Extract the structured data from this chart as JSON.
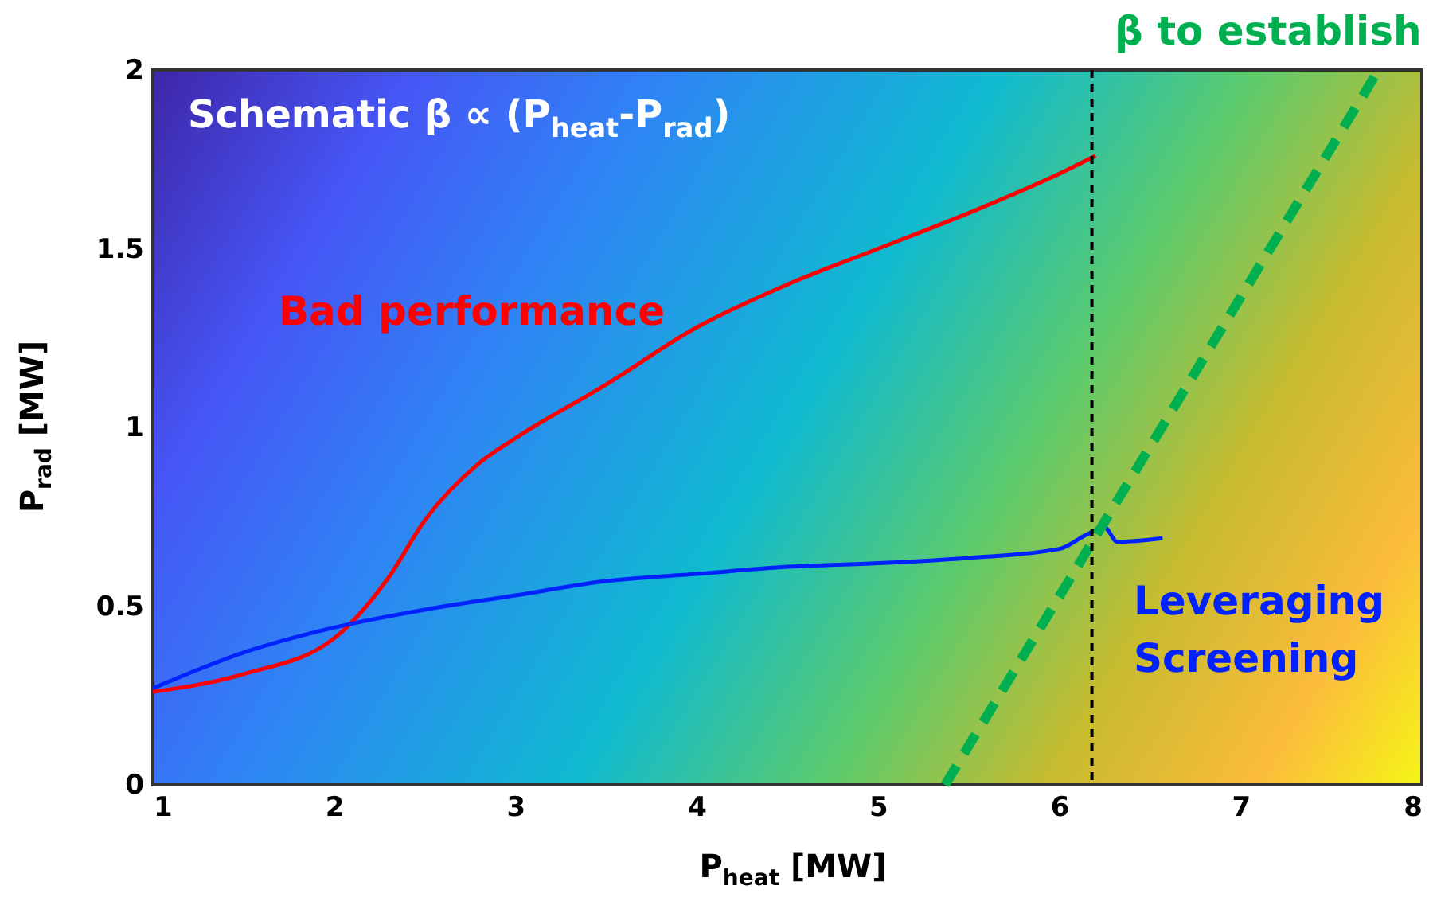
{
  "chart_data": {
    "type": "line",
    "title": "Schematic β ∝ (P$_{heat}$-P$_{rad}$)",
    "xlabel": "P$_{heat}$ [MW]",
    "ylabel": "P$_{rad}$ [MW]",
    "series": [
      {
        "name": "Bad performance",
        "color": "#ff0000",
        "x": [
          1,
          1.5,
          2,
          2.3,
          2.5,
          2.8,
          3,
          3.5,
          4,
          4.5,
          5,
          5.5,
          6,
          6.2
        ],
        "values": [
          0.26,
          0.31,
          0.41,
          0.58,
          0.74,
          0.9,
          0.97,
          1.12,
          1.28,
          1.4,
          1.5,
          1.6,
          1.71,
          1.76
        ]
      },
      {
        "name": "Leveraging Screening",
        "color": "#0022ff",
        "x": [
          1,
          1.5,
          2,
          2.5,
          3,
          3.5,
          4,
          4.5,
          5,
          5.5,
          6,
          6.15,
          6.25,
          6.32,
          6.57
        ],
        "values": [
          0.27,
          0.37,
          0.44,
          0.49,
          0.53,
          0.57,
          0.59,
          0.61,
          0.62,
          0.635,
          0.66,
          0.7,
          0.72,
          0.68,
          0.69
        ]
      },
      {
        "name": "β to establish",
        "color": "#00b050",
        "line_style": "dashed",
        "x": [
          5.37,
          7.76
        ],
        "values": [
          0,
          2
        ]
      }
    ],
    "xlim": [
      1,
      8
    ],
    "ylim": [
      0,
      2
    ],
    "xticks": [
      1,
      2,
      3,
      4,
      5,
      6,
      7,
      8
    ],
    "yticks": [
      0,
      0.5,
      1,
      1.5,
      2
    ],
    "grid": false,
    "marker": "none",
    "ref_lines": [
      {
        "axis": "x",
        "value": 6.18,
        "color": "#000000",
        "line_style": "dashed"
      }
    ]
  }
}
